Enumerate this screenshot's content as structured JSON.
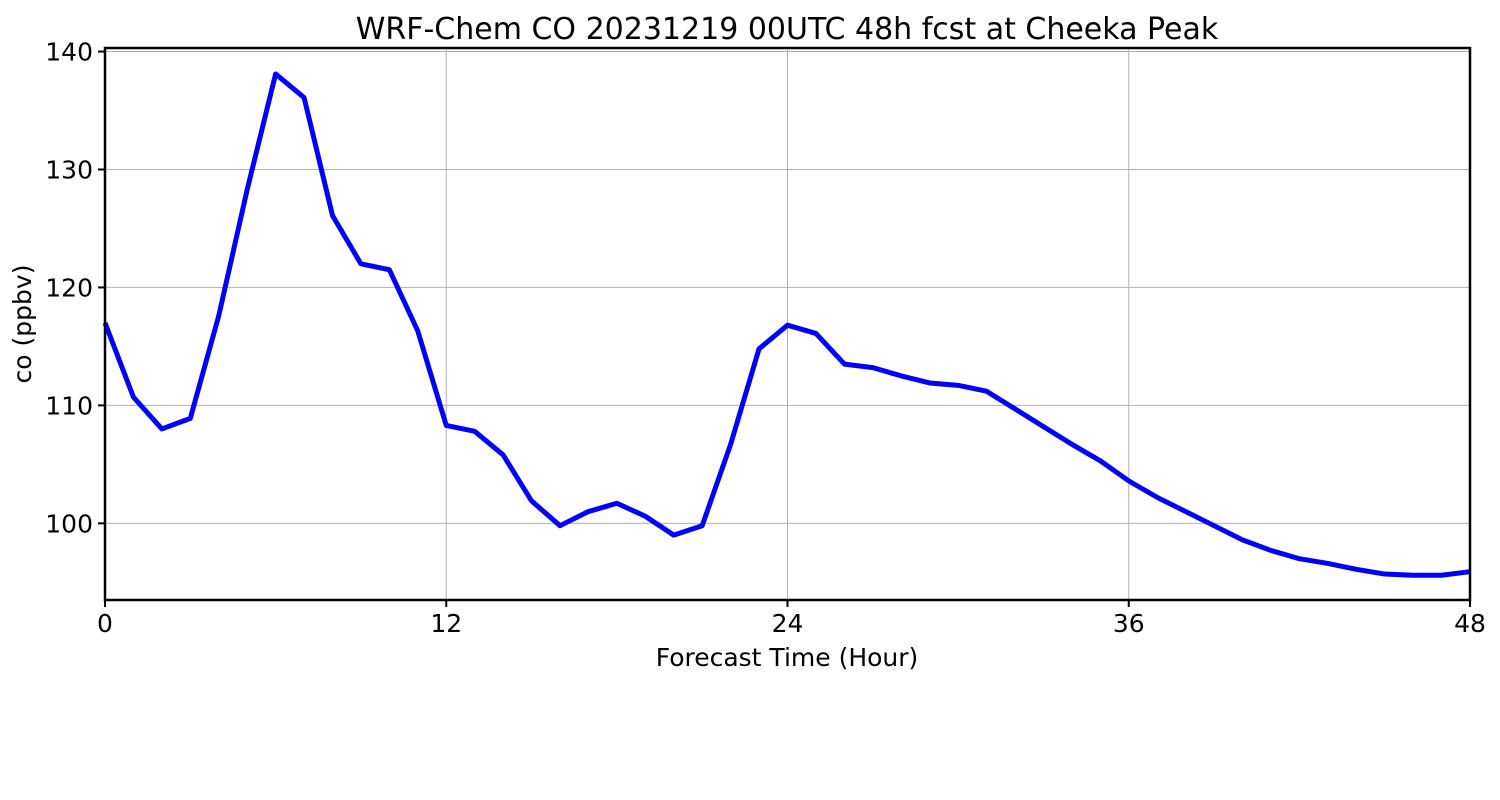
{
  "chart_data": {
    "type": "line",
    "title": "WRF-Chem CO  20231219 00UTC 48h fcst at Cheeka Peak",
    "xlabel": "Forecast Time (Hour)",
    "ylabel": "co  (ppbv)",
    "xlim": [
      0,
      48
    ],
    "ylim": [
      93.5,
      140.3
    ],
    "xticks": [
      0,
      12,
      24,
      36,
      48
    ],
    "yticks": [
      100,
      110,
      120,
      130,
      140
    ],
    "grid": true,
    "line_color": "#0000ff",
    "series": [
      {
        "x": [
          0,
          1,
          2,
          3,
          4,
          5,
          6,
          7,
          8,
          9,
          10,
          11,
          12,
          13,
          14,
          15,
          16,
          17,
          18,
          19,
          20,
          21,
          22,
          23,
          24,
          25,
          26,
          27,
          28,
          29,
          30,
          31,
          32,
          33,
          34,
          35,
          36,
          37,
          38,
          39,
          40,
          41,
          42,
          43,
          44,
          45,
          46,
          47,
          48
        ],
        "values": [
          117.0,
          110.7,
          108.0,
          108.9,
          117.6,
          128.3,
          138.1,
          136.1,
          126.1,
          122.0,
          121.5,
          116.3,
          108.3,
          107.8,
          105.8,
          101.9,
          99.8,
          101.0,
          101.7,
          100.6,
          99.0,
          99.8,
          106.7,
          114.8,
          116.8,
          116.1,
          113.5,
          113.2,
          112.5,
          111.9,
          111.7,
          111.2,
          109.7,
          108.2,
          106.7,
          105.3,
          103.6,
          102.2,
          101.0,
          99.8,
          98.6,
          97.7,
          97.0,
          96.6,
          96.1,
          95.7,
          95.6,
          95.6,
          95.9
        ]
      }
    ]
  }
}
